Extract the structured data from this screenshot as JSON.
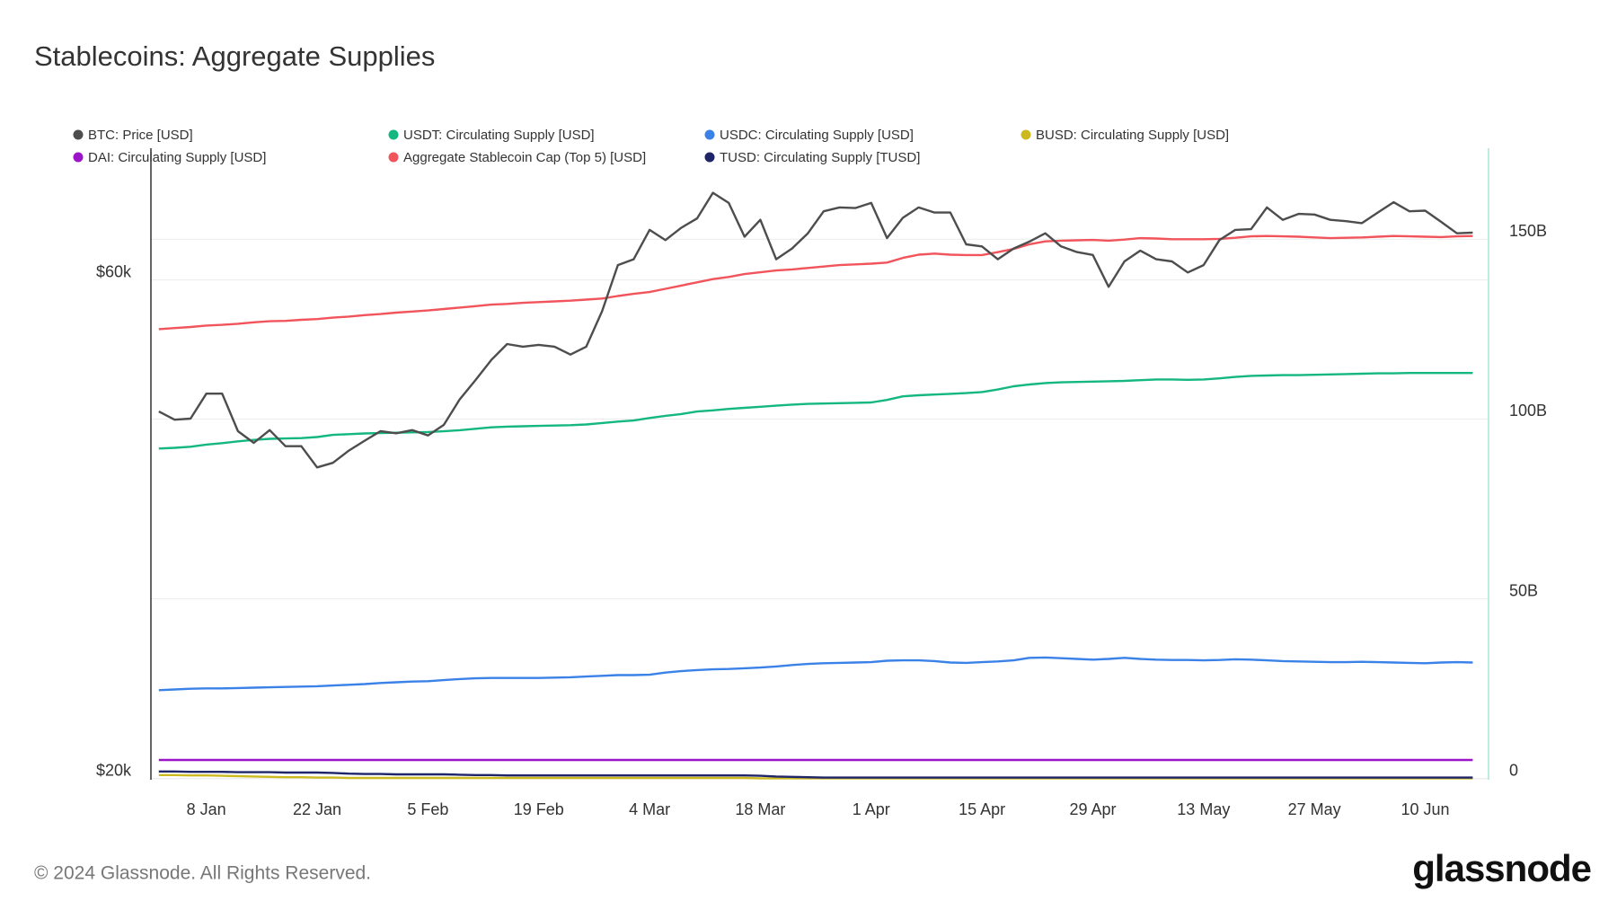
{
  "chart_data": {
    "type": "line",
    "title": "Stablecoins: Aggregate Supplies",
    "footer": "© 2024 Glassnode. All Rights Reserved.",
    "logo": "glassnode",
    "categories": [
      "2 Jan",
      "4 Jan",
      "6 Jan",
      "8 Jan",
      "10 Jan",
      "12 Jan",
      "14 Jan",
      "16 Jan",
      "18 Jan",
      "20 Jan",
      "22 Jan",
      "24 Jan",
      "26 Jan",
      "28 Jan",
      "30 Jan",
      "1 Feb",
      "3 Feb",
      "5 Feb",
      "7 Feb",
      "9 Feb",
      "11 Feb",
      "13 Feb",
      "15 Feb",
      "17 Feb",
      "19 Feb",
      "21 Feb",
      "23 Feb",
      "25 Feb",
      "27 Feb",
      "29 Feb",
      "2 Mar",
      "4 Mar",
      "6 Mar",
      "8 Mar",
      "10 Mar",
      "12 Mar",
      "14 Mar",
      "16 Mar",
      "18 Mar",
      "20 Mar",
      "22 Mar",
      "24 Mar",
      "26 Mar",
      "28 Mar",
      "30 Mar",
      "1 Apr",
      "3 Apr",
      "5 Apr",
      "7 Apr",
      "9 Apr",
      "11 Apr",
      "13 Apr",
      "15 Apr",
      "17 Apr",
      "19 Apr",
      "21 Apr",
      "23 Apr",
      "25 Apr",
      "27 Apr",
      "29 Apr",
      "1 May",
      "3 May",
      "5 May",
      "7 May",
      "9 May",
      "11 May",
      "13 May",
      "15 May",
      "17 May",
      "19 May",
      "21 May",
      "23 May",
      "25 May",
      "27 May",
      "29 May",
      "31 May",
      "2 Jun",
      "4 Jun",
      "6 Jun",
      "8 Jun",
      "10 Jun",
      "12 Jun",
      "14 Jun",
      "16 Jun"
    ],
    "xticks": [
      "8 Jan",
      "22 Jan",
      "5 Feb",
      "19 Feb",
      "4 Mar",
      "18 Mar",
      "1 Apr",
      "15 Apr",
      "29 Apr",
      "13 May",
      "27 May",
      "10 Jun"
    ],
    "ylog": true,
    "ylim": [
      19950,
      80200
    ],
    "yticks": [
      {
        "value": 20000,
        "label": "$20k"
      },
      {
        "value": 60000,
        "label": "$60k"
      }
    ],
    "y2lim": [
      -0.3,
      175.3
    ],
    "y2ticks": [
      0,
      {
        "value": 50,
        "label": "50B"
      },
      {
        "value": 100,
        "label": "100B"
      },
      {
        "value": 150,
        "label": "150B"
      }
    ],
    "grid": true,
    "legend": "top",
    "series": [
      {
        "name": "BTC: Price [USD]",
        "color": "#4d4d4d",
        "axis": "y",
        "values": [
          44900,
          44100,
          44200,
          46700,
          46700,
          43000,
          41900,
          43100,
          41600,
          41600,
          39700,
          40100,
          41200,
          42100,
          43000,
          42800,
          43100,
          42600,
          43600,
          46100,
          48100,
          50300,
          52100,
          51800,
          52000,
          51800,
          50900,
          51800,
          56000,
          62000,
          62800,
          67000,
          65500,
          67300,
          68700,
          72700,
          71100,
          66000,
          68500,
          62800,
          64300,
          66500,
          69800,
          70400,
          70300,
          71100,
          65800,
          68800,
          70400,
          69600,
          69600,
          64900,
          64600,
          62800,
          64300,
          65300,
          66500,
          64600,
          63800,
          63400,
          59100,
          62500,
          64000,
          62800,
          62500,
          61000,
          62000,
          65500,
          67000,
          67100,
          70400,
          68500,
          69400,
          69300,
          68500,
          68300,
          68000,
          69600,
          71200,
          69800,
          69900,
          68200,
          66500,
          66600
        ]
      },
      {
        "name": "USDT: Circulating Supply [USD]",
        "color": "#13b77f",
        "axis": "y2",
        "values": [
          91.8,
          92.0,
          92.3,
          92.9,
          93.3,
          93.8,
          94.2,
          94.5,
          94.6,
          94.7,
          95.0,
          95.6,
          95.8,
          96.0,
          96.1,
          96.2,
          96.3,
          96.4,
          96.6,
          96.9,
          97.3,
          97.7,
          97.9,
          98.0,
          98.1,
          98.2,
          98.3,
          98.5,
          98.9,
          99.3,
          99.6,
          100.3,
          100.9,
          101.4,
          102.1,
          102.4,
          102.8,
          103.1,
          103.4,
          103.7,
          104.0,
          104.2,
          104.3,
          104.4,
          104.5,
          104.6,
          105.3,
          106.3,
          106.6,
          106.8,
          107.0,
          107.2,
          107.5,
          108.2,
          109.1,
          109.6,
          110.0,
          110.2,
          110.3,
          110.4,
          110.5,
          110.6,
          110.8,
          111.0,
          111.0,
          110.9,
          111.0,
          111.3,
          111.7,
          112.0,
          112.1,
          112.2,
          112.2,
          112.3,
          112.4,
          112.5,
          112.6,
          112.7,
          112.7,
          112.8,
          112.8,
          112.8,
          112.8,
          112.8
        ]
      },
      {
        "name": "USDC: Circulating Supply [USD]",
        "color": "#3b82e8",
        "axis": "y2",
        "values": [
          24.6,
          24.8,
          25.0,
          25.1,
          25.1,
          25.2,
          25.3,
          25.4,
          25.5,
          25.6,
          25.7,
          25.9,
          26.1,
          26.3,
          26.6,
          26.8,
          27.0,
          27.1,
          27.4,
          27.7,
          27.9,
          28.0,
          28.0,
          28.0,
          28.0,
          28.1,
          28.2,
          28.4,
          28.6,
          28.8,
          28.8,
          28.9,
          29.5,
          29.9,
          30.2,
          30.4,
          30.5,
          30.7,
          30.9,
          31.2,
          31.6,
          31.9,
          32.1,
          32.2,
          32.3,
          32.4,
          32.8,
          32.9,
          32.9,
          32.7,
          32.3,
          32.2,
          32.4,
          32.6,
          32.9,
          33.6,
          33.7,
          33.5,
          33.3,
          33.1,
          33.3,
          33.6,
          33.3,
          33.1,
          33.0,
          33.0,
          32.9,
          33.0,
          33.2,
          33.1,
          32.9,
          32.7,
          32.6,
          32.5,
          32.4,
          32.4,
          32.5,
          32.4,
          32.3,
          32.2,
          32.1,
          32.3,
          32.4,
          32.3
        ]
      },
      {
        "name": "BUSD: Circulating Supply [USD]",
        "color": "#cbb91f",
        "axis": "y2",
        "values": [
          1.0,
          1.0,
          0.9,
          0.9,
          0.8,
          0.7,
          0.6,
          0.5,
          0.4,
          0.4,
          0.3,
          0.3,
          0.2,
          0.2,
          0.2,
          0.2,
          0.2,
          0.2,
          0.2,
          0.2,
          0.2,
          0.2,
          0.2,
          0.2,
          0.2,
          0.2,
          0.2,
          0.2,
          0.2,
          0.2,
          0.2,
          0.2,
          0.2,
          0.2,
          0.2,
          0.2,
          0.2,
          0.2,
          0.1,
          0.1,
          0.1,
          0.1,
          0.1,
          0.1,
          0.1,
          0.1,
          0.1,
          0.1,
          0.1,
          0.1,
          0.1,
          0.1,
          0.1,
          0.1,
          0.1,
          0.1,
          0.1,
          0.1,
          0.1,
          0.1,
          0.1,
          0.1,
          0.1,
          0.1,
          0.1,
          0.1,
          0.1,
          0.1,
          0.1,
          0.1,
          0.1,
          0.1,
          0.1,
          0.1,
          0.1,
          0.1,
          0.1,
          0.1,
          0.1,
          0.1,
          0.1,
          0.1,
          0.1,
          0.1
        ]
      },
      {
        "name": "DAI: Circulating Supply [USD]",
        "color": "#9b14c8",
        "axis": "y2",
        "values": [
          5.2,
          5.2,
          5.2,
          5.2,
          5.2,
          5.2,
          5.2,
          5.2,
          5.2,
          5.2,
          5.2,
          5.2,
          5.2,
          5.2,
          5.2,
          5.2,
          5.2,
          5.2,
          5.2,
          5.2,
          5.2,
          5.2,
          5.2,
          5.2,
          5.2,
          5.2,
          5.2,
          5.2,
          5.2,
          5.2,
          5.2,
          5.2,
          5.2,
          5.2,
          5.2,
          5.2,
          5.2,
          5.2,
          5.2,
          5.2,
          5.2,
          5.2,
          5.2,
          5.2,
          5.2,
          5.2,
          5.2,
          5.2,
          5.2,
          5.2,
          5.2,
          5.2,
          5.2,
          5.2,
          5.2,
          5.2,
          5.2,
          5.2,
          5.2,
          5.2,
          5.2,
          5.2,
          5.2,
          5.2,
          5.2,
          5.2,
          5.2,
          5.2,
          5.2,
          5.2,
          5.2,
          5.2,
          5.2,
          5.2,
          5.2,
          5.2,
          5.2,
          5.2,
          5.2,
          5.2,
          5.2,
          5.2,
          5.2,
          5.2
        ]
      },
      {
        "name": "Aggregate Stablecoin Cap (Top 5) [USD]",
        "color": "#f2545b",
        "axis": "y2",
        "values": [
          125.0,
          125.3,
          125.6,
          126.0,
          126.2,
          126.5,
          126.9,
          127.2,
          127.3,
          127.6,
          127.8,
          128.2,
          128.5,
          128.9,
          129.2,
          129.6,
          129.9,
          130.2,
          130.6,
          131.0,
          131.4,
          131.8,
          132.0,
          132.3,
          132.5,
          132.7,
          132.9,
          133.2,
          133.5,
          134.2,
          134.8,
          135.3,
          136.2,
          137.1,
          138.0,
          138.9,
          139.5,
          140.3,
          140.8,
          141.3,
          141.6,
          142.0,
          142.4,
          142.8,
          143.0,
          143.2,
          143.5,
          144.8,
          145.7,
          146.0,
          145.7,
          145.6,
          145.6,
          146.4,
          147.3,
          148.6,
          149.4,
          149.6,
          149.7,
          149.8,
          149.6,
          149.9,
          150.3,
          150.2,
          150.0,
          150.0,
          150.0,
          150.1,
          150.4,
          150.8,
          150.9,
          150.8,
          150.7,
          150.5,
          150.3,
          150.4,
          150.5,
          150.7,
          150.9,
          150.8,
          150.7,
          150.6,
          150.8,
          150.9
        ]
      },
      {
        "name": "TUSD: Circulating Supply [TUSD]",
        "color": "#1e2568",
        "axis": "y2",
        "values": [
          2.0,
          2.0,
          1.9,
          1.9,
          1.9,
          1.8,
          1.8,
          1.8,
          1.7,
          1.7,
          1.7,
          1.6,
          1.4,
          1.3,
          1.3,
          1.2,
          1.2,
          1.2,
          1.2,
          1.1,
          1.0,
          1.0,
          0.9,
          0.9,
          0.9,
          0.9,
          0.9,
          0.9,
          0.9,
          0.9,
          0.9,
          0.9,
          0.9,
          0.9,
          0.9,
          0.9,
          0.9,
          0.9,
          0.8,
          0.6,
          0.5,
          0.4,
          0.3,
          0.3,
          0.3,
          0.3,
          0.3,
          0.3,
          0.3,
          0.3,
          0.3,
          0.3,
          0.3,
          0.3,
          0.3,
          0.3,
          0.3,
          0.3,
          0.3,
          0.3,
          0.3,
          0.3,
          0.3,
          0.3,
          0.3,
          0.3,
          0.3,
          0.3,
          0.3,
          0.3,
          0.3,
          0.3,
          0.3,
          0.3,
          0.3,
          0.3,
          0.3,
          0.3,
          0.3,
          0.3,
          0.3,
          0.3,
          0.3,
          0.3
        ]
      }
    ]
  }
}
